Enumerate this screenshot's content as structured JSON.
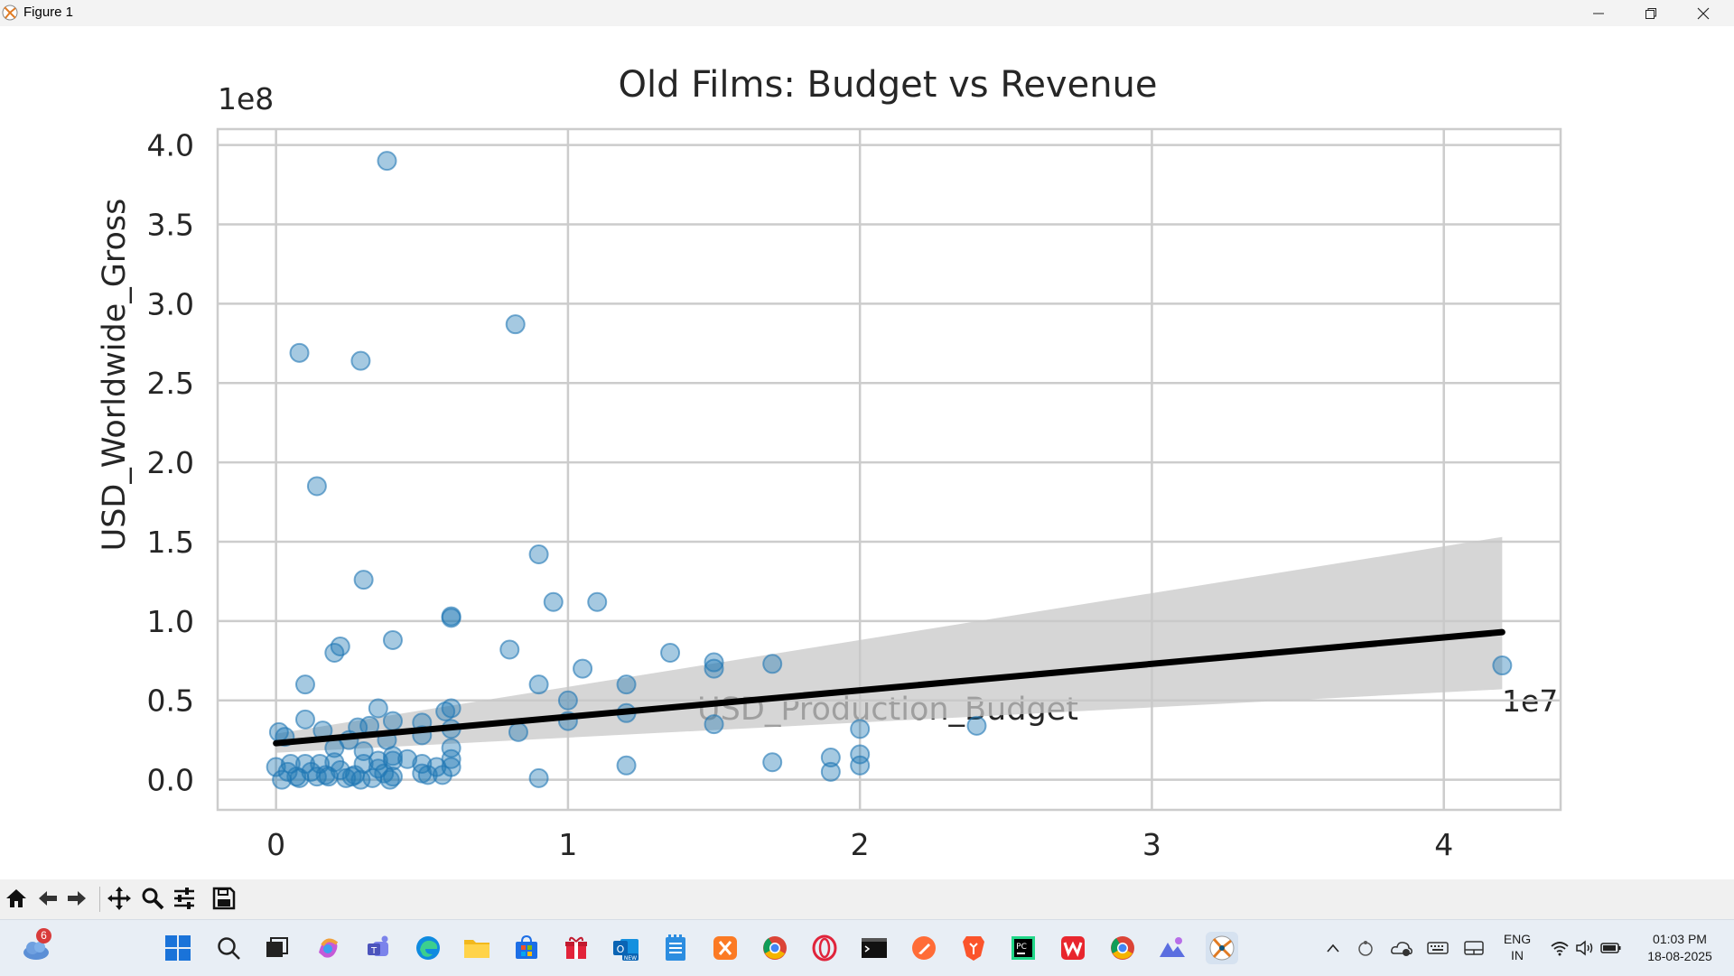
{
  "window": {
    "title": "Figure 1",
    "colors": {
      "titlebar": "#f3f3f3",
      "toolbar": "#f0f0f0",
      "taskbar": "#e8eef5"
    }
  },
  "chart_data": {
    "type": "scatter",
    "title": "Old Films: Budget vs Revenue",
    "xlabel": "USD_Production_Budget",
    "ylabel": "USD_Worldwide_Gross",
    "x_offset_label": "1e7",
    "y_offset_label": "1e8",
    "xlim": [
      -0.2,
      4.4
    ],
    "ylim": [
      -0.19,
      4.1
    ],
    "x_ticks": [
      0,
      1,
      2,
      3,
      4
    ],
    "x_tick_labels": [
      "0",
      "1",
      "2",
      "3",
      "4"
    ],
    "y_ticks": [
      0,
      0.5,
      1.0,
      1.5,
      2.0,
      2.5,
      3.0,
      3.5,
      4.0
    ],
    "y_tick_labels": [
      "0.0",
      "0.5",
      "1.0",
      "1.5",
      "2.0",
      "2.5",
      "3.0",
      "3.5",
      "4.0"
    ],
    "grid": true,
    "style": "seaborn whitegrid",
    "point_color": "#1f77b4",
    "line_color": "#000000",
    "band_color": "#c8c8c8",
    "series": [
      {
        "kind": "points",
        "x": [
          0.38,
          0.82,
          0.08,
          0.29,
          0.14,
          0.9,
          0.3,
          0.95,
          1.1,
          0.6,
          0.6,
          0.4,
          0.22,
          0.2,
          0.8,
          1.35,
          1.5,
          1.5,
          1.7,
          1.05,
          4.2,
          0.1,
          0.9,
          0.6,
          1.2,
          0.35,
          1.0,
          0.58,
          1.2,
          0.1,
          0.4,
          0.5,
          0.32,
          0.28,
          0.6,
          0.16,
          0.83,
          0.01,
          1.5,
          2.4,
          2.0,
          1.0,
          0.03,
          0.25,
          0.38,
          0.2,
          0.5,
          0.6,
          0.3,
          0.4,
          2.0,
          1.9,
          1.7,
          1.2,
          0.5,
          0.35,
          0.15,
          0.6,
          2.0,
          0.0,
          0.05,
          0.1,
          0.2,
          0.3,
          0.4,
          0.45,
          0.55,
          1.9,
          0.12,
          0.22,
          0.35,
          0.6,
          0.07,
          0.17,
          0.27,
          0.37,
          0.9,
          0.02,
          0.08,
          0.14,
          0.26,
          0.33,
          0.4,
          0.52,
          0.04,
          0.18,
          0.24,
          0.29,
          0.39,
          0.5,
          0.57
        ],
        "y": [
          3.9,
          2.87,
          2.69,
          2.64,
          1.85,
          1.42,
          1.26,
          1.12,
          1.12,
          1.03,
          1.02,
          0.88,
          0.84,
          0.8,
          0.82,
          0.8,
          0.74,
          0.7,
          0.73,
          0.7,
          0.72,
          0.6,
          0.6,
          0.45,
          0.6,
          0.45,
          0.5,
          0.43,
          0.42,
          0.38,
          0.37,
          0.36,
          0.34,
          0.33,
          0.32,
          0.31,
          0.3,
          0.3,
          0.35,
          0.34,
          0.32,
          0.37,
          0.27,
          0.25,
          0.25,
          0.2,
          0.28,
          0.2,
          0.18,
          0.15,
          0.16,
          0.14,
          0.11,
          0.09,
          0.1,
          0.12,
          0.1,
          0.13,
          0.09,
          0.08,
          0.1,
          0.1,
          0.11,
          0.1,
          0.12,
          0.13,
          0.08,
          0.05,
          0.05,
          0.06,
          0.07,
          0.08,
          0.02,
          0.03,
          0.03,
          0.04,
          0.01,
          0.0,
          0.01,
          0.02,
          0.02,
          0.01,
          0.02,
          0.03,
          0.05,
          0.02,
          0.01,
          0.0,
          0.0,
          0.04,
          0.03
        ]
      },
      {
        "kind": "regression",
        "x": [
          0.0,
          4.2
        ],
        "y": [
          0.23,
          0.93
        ],
        "ci_upper": [
          0.29,
          1.53
        ],
        "ci_lower": [
          0.17,
          0.57
        ]
      }
    ]
  },
  "toolbar": {
    "icons": [
      "home-icon",
      "back-icon",
      "forward-icon",
      "pan-icon",
      "zoom-icon",
      "configure-icon",
      "save-icon"
    ]
  },
  "taskbar": {
    "weather_badge": "6",
    "lang_line1": "ENG",
    "lang_line2": "IN",
    "time": "01:03 PM",
    "date": "18-08-2025"
  }
}
